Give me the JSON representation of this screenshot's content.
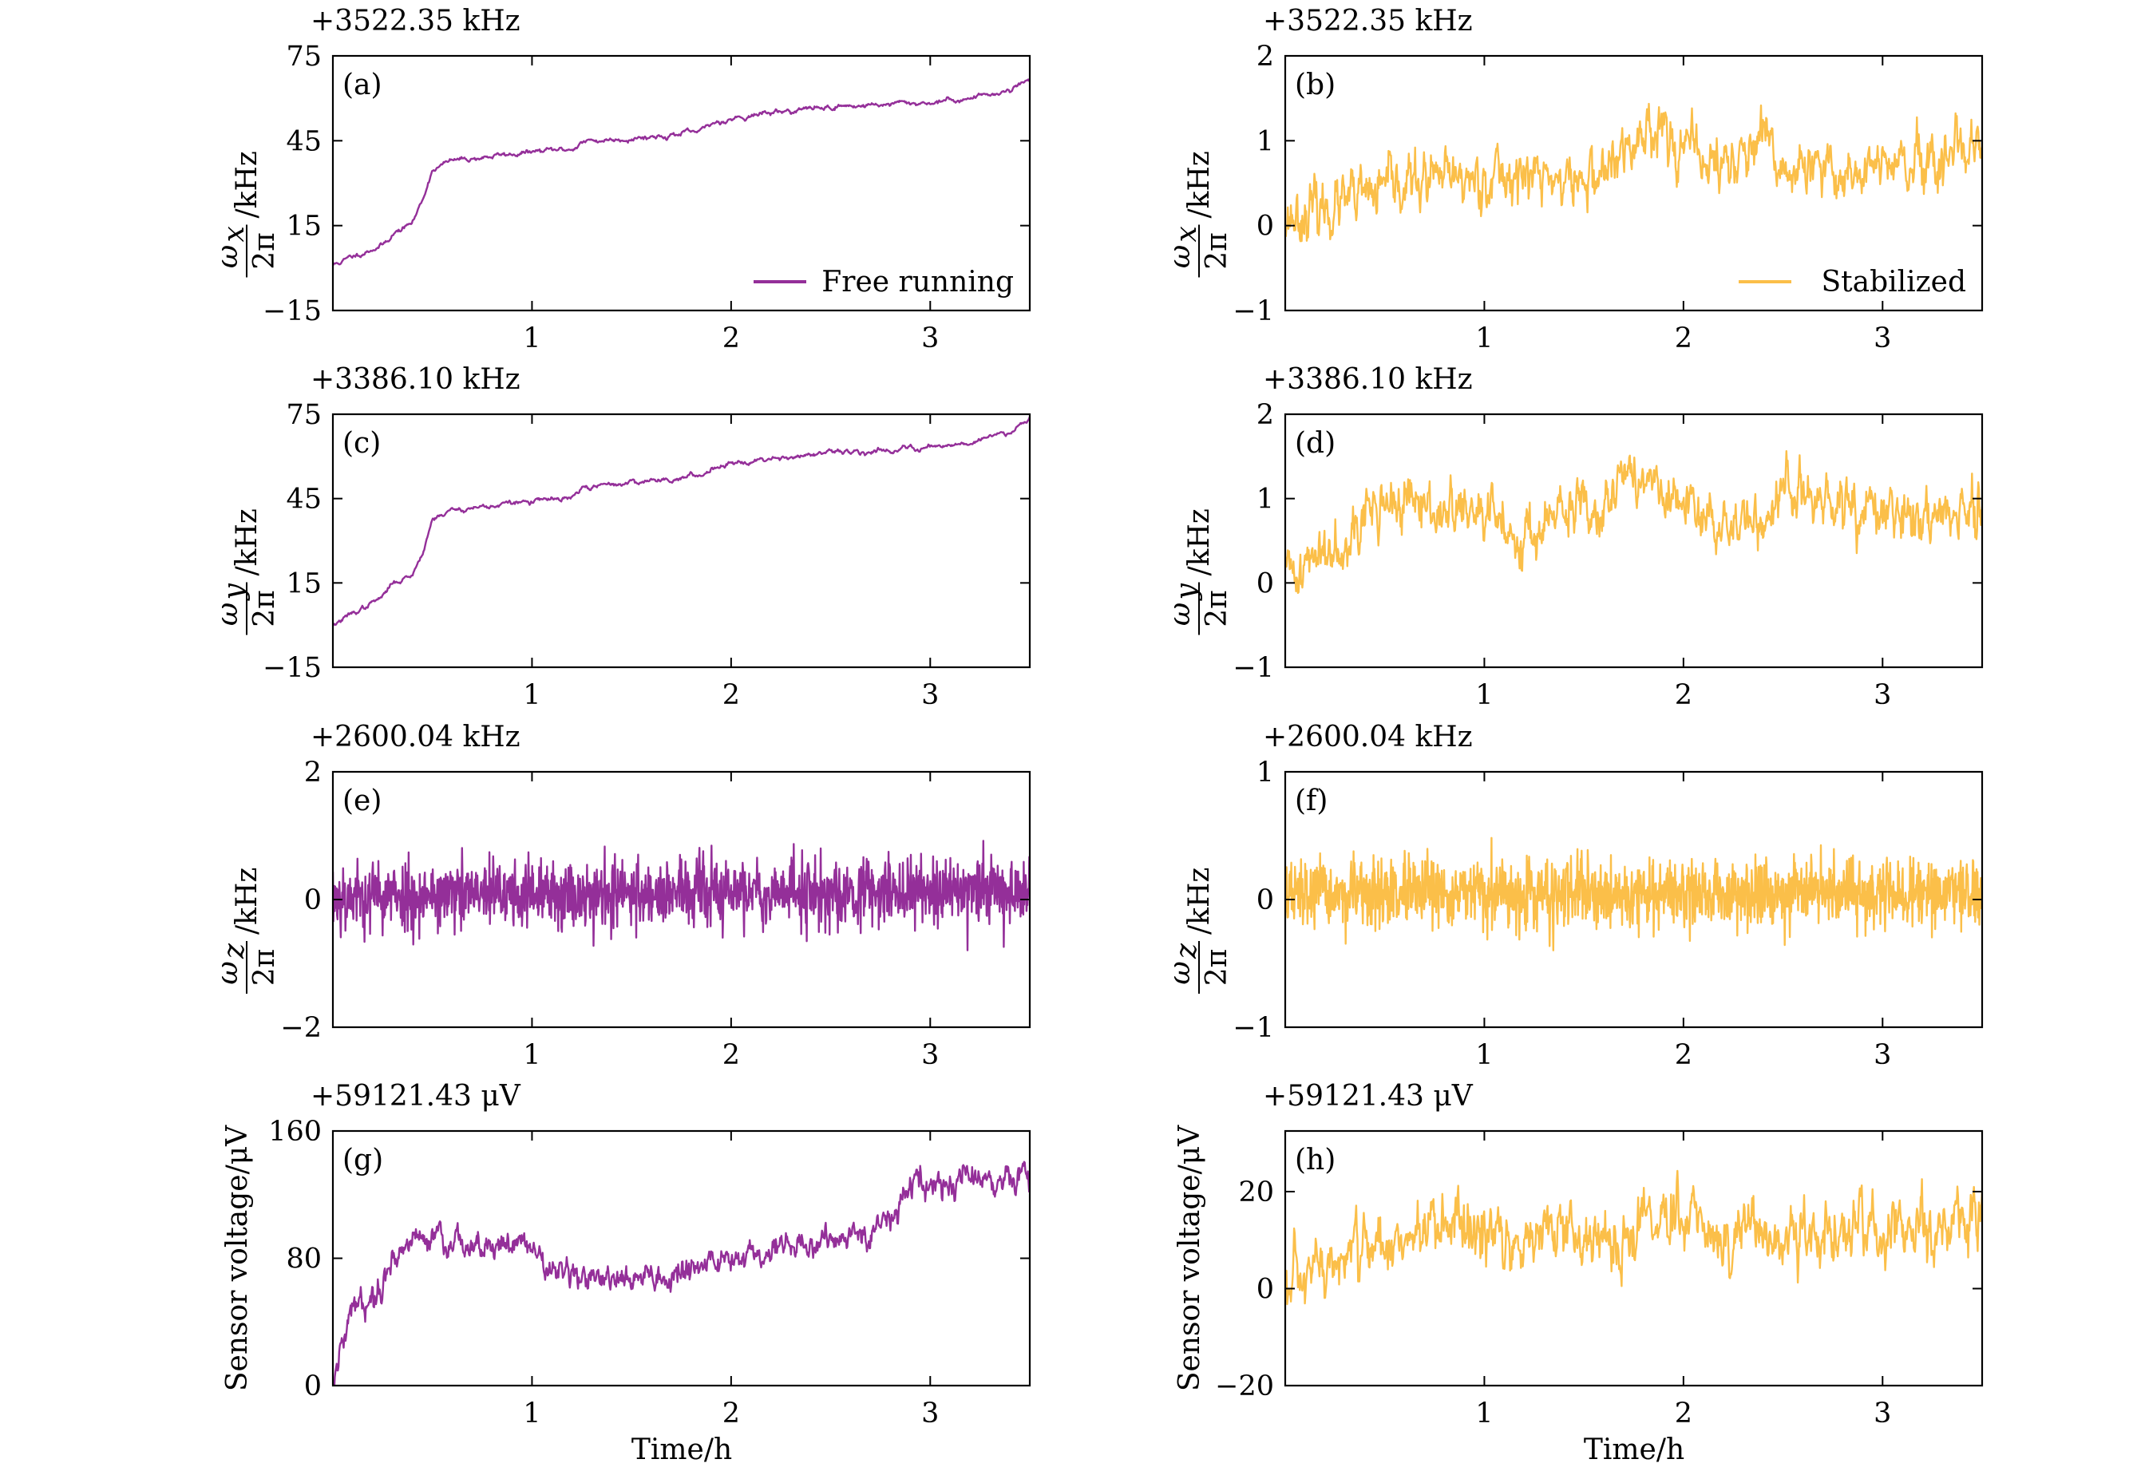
{
  "colors": {
    "free": "#942f99",
    "stabilized": "#fbbf49",
    "axis": "#000000"
  },
  "xlabel": "Time/h",
  "chart_data": [
    {
      "id": "a",
      "type": "line",
      "tag": "(a)",
      "offset_label": "+3522.35 kHz",
      "ylabel_num": "ω",
      "ylabel_sub": "x",
      "ylabel_den": "2π",
      "ylabel_unit": "/kHz",
      "xlim": [
        0,
        3.5
      ],
      "ylim": [
        -15,
        75
      ],
      "xticks": [
        1,
        2,
        3
      ],
      "xticklabels": [
        "1",
        "2",
        "3"
      ],
      "yticks": [
        -15,
        15,
        45,
        75
      ],
      "yticklabels": [
        "−15",
        "15",
        "45",
        "75"
      ],
      "legend": "Free running",
      "legend_position": "lower-right",
      "series": [
        {
          "name": "Free running",
          "color": "#942f99",
          "kind": "trend",
          "x": [
            0,
            0.1,
            0.2,
            0.25,
            0.3,
            0.4,
            0.45,
            0.5,
            0.6,
            0.8,
            1.0,
            1.2,
            1.25,
            1.4,
            1.6,
            1.85,
            1.9,
            2.0,
            2.2,
            2.5,
            2.8,
            3.0,
            3.2,
            3.4,
            3.5
          ],
          "y": [
            1,
            4,
            7,
            8,
            12,
            16,
            24,
            35,
            38,
            39.5,
            41,
            42,
            44.5,
            45.5,
            46.5,
            48,
            51,
            53,
            55,
            57,
            58,
            58.5,
            60,
            63,
            67
          ],
          "noise": 0.6,
          "seed": 11
        }
      ]
    },
    {
      "id": "b",
      "type": "line",
      "tag": "(b)",
      "offset_label": "+3522.35 kHz",
      "ylabel_num": "ω",
      "ylabel_sub": "x",
      "ylabel_den": "2π",
      "ylabel_unit": "/kHz",
      "xlim": [
        0,
        3.5
      ],
      "ylim": [
        -1,
        2
      ],
      "xticks": [
        1,
        2,
        3
      ],
      "xticklabels": [
        "1",
        "2",
        "3"
      ],
      "yticks": [
        -1,
        0,
        1,
        2
      ],
      "yticklabels": [
        "−1",
        "0",
        "1",
        "2"
      ],
      "legend": "Stabilized",
      "legend_position": "lower-right",
      "series": [
        {
          "name": "Stabilized",
          "color": "#fbbf49",
          "kind": "noisy",
          "x": [
            0,
            0.3,
            0.6,
            0.9,
            1.2,
            1.5,
            1.7,
            1.85,
            2.0,
            2.2,
            2.4,
            2.5,
            2.7,
            3.0,
            3.3,
            3.5
          ],
          "y": [
            0.1,
            0.25,
            0.5,
            0.55,
            0.6,
            0.5,
            0.8,
            1.25,
            0.9,
            0.7,
            0.95,
            0.65,
            0.6,
            0.7,
            0.65,
            0.9
          ],
          "noise": 0.17,
          "seed": 23
        }
      ]
    },
    {
      "id": "c",
      "type": "line",
      "tag": "(c)",
      "offset_label": "+3386.10 kHz",
      "ylabel_num": "ω",
      "ylabel_sub": "y",
      "ylabel_den": "2π",
      "ylabel_unit": "/kHz",
      "xlim": [
        0,
        3.5
      ],
      "ylim": [
        -15,
        75
      ],
      "xticks": [
        1,
        2,
        3
      ],
      "xticklabels": [
        "1",
        "2",
        "3"
      ],
      "yticks": [
        -15,
        15,
        45,
        75
      ],
      "yticklabels": [
        "−15",
        "15",
        "45",
        "75"
      ],
      "series": [
        {
          "name": "Free running",
          "color": "#942f99",
          "kind": "trend",
          "x": [
            0,
            0.1,
            0.2,
            0.25,
            0.3,
            0.4,
            0.45,
            0.5,
            0.6,
            0.8,
            1.0,
            1.2,
            1.25,
            1.4,
            1.6,
            1.85,
            1.9,
            2.0,
            2.2,
            2.5,
            2.8,
            3.0,
            3.2,
            3.4,
            3.5
          ],
          "y": [
            0,
            4,
            8,
            10,
            15,
            18,
            26,
            38,
            41,
            42.5,
            44,
            45,
            48.5,
            50,
            51.5,
            53,
            56,
            58,
            59.5,
            61,
            62.5,
            63.5,
            65,
            69,
            74
          ],
          "noise": 0.6,
          "seed": 37
        }
      ]
    },
    {
      "id": "d",
      "type": "line",
      "tag": "(d)",
      "offset_label": "+3386.10 kHz",
      "ylabel_num": "ω",
      "ylabel_sub": "y",
      "ylabel_den": "2π",
      "ylabel_unit": "/kHz",
      "xlim": [
        0,
        3.5
      ],
      "ylim": [
        -1,
        2
      ],
      "xticks": [
        1,
        2,
        3
      ],
      "xticklabels": [
        "1",
        "2",
        "3"
      ],
      "yticks": [
        -1,
        0,
        1,
        2
      ],
      "yticklabels": [
        "−1",
        "0",
        "1",
        "2"
      ],
      "series": [
        {
          "name": "Stabilized",
          "color": "#fbbf49",
          "kind": "noisy",
          "x": [
            0,
            0.1,
            0.3,
            0.5,
            0.8,
            1.0,
            1.2,
            1.4,
            1.6,
            1.75,
            1.9,
            2.1,
            2.4,
            2.5,
            2.7,
            3.0,
            3.3,
            3.5
          ],
          "y": [
            0.1,
            0.2,
            0.6,
            0.95,
            0.85,
            0.8,
            0.55,
            0.8,
            1.0,
            1.35,
            1.0,
            0.75,
            0.7,
            1.15,
            0.9,
            0.8,
            0.8,
            0.9
          ],
          "noise": 0.17,
          "seed": 41
        }
      ]
    },
    {
      "id": "e",
      "type": "line",
      "tag": "(e)",
      "offset_label": "+2600.04 kHz",
      "ylabel_num": "ω",
      "ylabel_sub": "z",
      "ylabel_den": "2π",
      "ylabel_unit": "/kHz",
      "xlim": [
        0,
        3.5
      ],
      "ylim": [
        -2,
        2
      ],
      "xticks": [
        1,
        2,
        3
      ],
      "xticklabels": [
        "1",
        "2",
        "3"
      ],
      "yticks": [
        -2,
        0,
        2
      ],
      "yticklabels": [
        "−2",
        "0",
        "2"
      ],
      "series": [
        {
          "name": "Free running",
          "color": "#942f99",
          "kind": "white",
          "x": [
            0,
            3.5
          ],
          "y": [
            0.05,
            0.15
          ],
          "noise": 0.27,
          "seed": 53
        }
      ]
    },
    {
      "id": "f",
      "type": "line",
      "tag": "(f)",
      "offset_label": "+2600.04 kHz",
      "ylabel_num": "ω",
      "ylabel_sub": "z",
      "ylabel_den": "2π",
      "ylabel_unit": "/kHz",
      "xlim": [
        0,
        3.5
      ],
      "ylim": [
        -1,
        1
      ],
      "xticks": [
        1,
        2,
        3
      ],
      "xticklabels": [
        "1",
        "2",
        "3"
      ],
      "yticks": [
        -1,
        0,
        1
      ],
      "yticklabels": [
        "−1",
        "0",
        "1"
      ],
      "series": [
        {
          "name": "Stabilized",
          "color": "#fbbf49",
          "kind": "white",
          "x": [
            0,
            3.5
          ],
          "y": [
            0.03,
            0.06
          ],
          "noise": 0.13,
          "seed": 67
        }
      ]
    },
    {
      "id": "g",
      "type": "line",
      "tag": "(g)",
      "offset_label": "+59121.43 μV",
      "ylabel_text": "Sensor voltage/μV",
      "xlim": [
        0,
        3.5
      ],
      "ylim": [
        0,
        160
      ],
      "xticks": [
        1,
        2,
        3
      ],
      "xticklabels": [
        "1",
        "2",
        "3"
      ],
      "yticks": [
        0,
        80,
        160
      ],
      "yticklabels": [
        "0",
        "80",
        "160"
      ],
      "series": [
        {
          "name": "Free running",
          "color": "#942f99",
          "kind": "noisy",
          "x": [
            0,
            0.05,
            0.1,
            0.2,
            0.3,
            0.4,
            0.5,
            0.6,
            0.8,
            1.0,
            1.1,
            1.4,
            1.7,
            2.0,
            2.3,
            2.7,
            2.8,
            2.95,
            3.05,
            3.2,
            3.5
          ],
          "y": [
            0,
            25,
            50,
            55,
            80,
            92,
            95,
            88,
            90,
            88,
            72,
            65,
            70,
            80,
            88,
            95,
            105,
            130,
            125,
            130,
            130
          ],
          "noise": 4.5,
          "seed": 79
        }
      ]
    },
    {
      "id": "h",
      "type": "line",
      "tag": "(h)",
      "offset_label": "+59121.43 μV",
      "ylabel_text": "Sensor voltage/μV",
      "xlim": [
        0,
        3.5
      ],
      "ylim": [
        -20,
        32.5
      ],
      "xticks": [
        1,
        2,
        3
      ],
      "xticklabels": [
        "1",
        "2",
        "3"
      ],
      "yticks": [
        -20,
        0,
        20
      ],
      "yticklabels": [
        "−20",
        "0",
        "20"
      ],
      "series": [
        {
          "name": "Stabilized",
          "color": "#fbbf49",
          "kind": "noisy",
          "x": [
            0,
            0.2,
            0.5,
            0.8,
            1.1,
            1.4,
            1.7,
            1.85,
            2.0,
            2.3,
            2.6,
            2.9,
            3.2,
            3.4,
            3.5
          ],
          "y": [
            -2,
            4,
            10,
            12,
            10,
            12,
            10,
            16,
            13,
            12,
            10,
            12,
            12,
            14,
            18
          ],
          "noise": 3.5,
          "seed": 97
        }
      ]
    }
  ]
}
